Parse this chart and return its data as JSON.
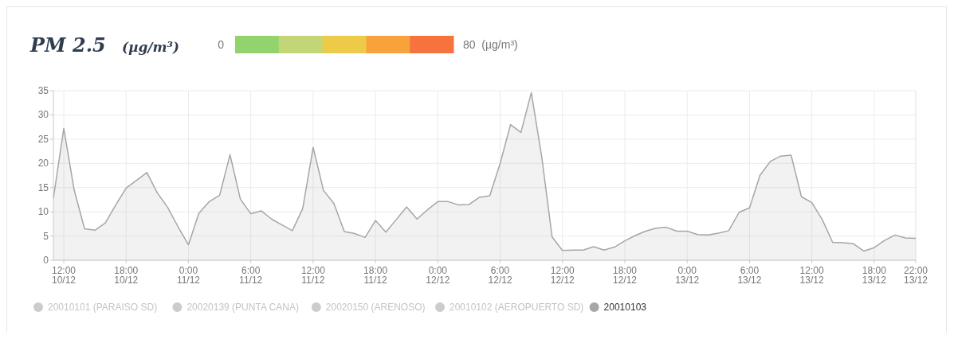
{
  "chart_data": {
    "type": "area",
    "title": "PM 2.5",
    "subtitle": "(µg/m³)",
    "annotations": [
      "0",
      "80  (µg/m³)"
    ],
    "categories": [
      null,
      "12:00\n10/12",
      null,
      null,
      null,
      null,
      null,
      "18:00\n10/12",
      null,
      null,
      null,
      null,
      null,
      "0:00\n11/12",
      null,
      null,
      null,
      null,
      null,
      "6:00\n11/12",
      null,
      null,
      null,
      null,
      null,
      "12:00\n11/12",
      null,
      null,
      null,
      null,
      null,
      "18:00\n11/12",
      null,
      null,
      null,
      null,
      null,
      "0:00\n12/12",
      null,
      null,
      null,
      null,
      null,
      "6:00\n12/12",
      null,
      null,
      null,
      null,
      null,
      "12:00\n12/12",
      null,
      null,
      null,
      null,
      null,
      "18:00\n12/12",
      null,
      null,
      null,
      null,
      null,
      "0:00\n13/12",
      null,
      null,
      null,
      null,
      null,
      "6:00\n13/12",
      null,
      null,
      null,
      null,
      null,
      "12:00\n13/12",
      null,
      null,
      null,
      null,
      null,
      "18:00\n13/12",
      null,
      null,
      null,
      "22:00\n13/12"
    ],
    "ylim": [
      0,
      35
    ],
    "yticks": [
      0,
      5,
      10,
      15,
      20,
      25,
      30,
      35
    ],
    "grid": true,
    "legend": "bottom",
    "marker": "none",
    "series": [
      {
        "name": "20010101 (PARAISO SD)",
        "color": "#cccccc",
        "values": [
          null,
          null,
          null,
          null,
          null,
          null,
          null,
          null,
          null,
          null,
          null,
          null,
          null,
          null,
          null,
          null,
          null,
          null,
          null,
          null,
          null,
          null,
          null,
          null,
          null,
          null,
          null,
          null,
          null,
          null,
          null,
          null,
          null,
          null,
          null,
          null,
          null,
          null,
          null,
          null,
          null,
          null,
          null,
          null,
          null,
          null,
          null,
          null,
          null,
          null,
          null,
          null,
          null,
          null,
          null,
          null,
          null,
          null,
          null,
          null,
          null,
          null,
          null,
          null,
          null,
          null,
          null,
          null,
          null,
          null,
          null,
          null,
          null,
          null,
          null,
          null,
          null,
          null,
          null,
          null,
          null,
          null,
          null,
          null
        ]
      },
      {
        "name": "20020139 (PUNTA CANA)",
        "color": "#cccccc",
        "values": [
          null,
          null,
          null,
          null,
          null,
          null,
          null,
          null,
          null,
          null,
          null,
          null,
          null,
          null,
          null,
          null,
          null,
          null,
          null,
          null,
          null,
          null,
          null,
          null,
          null,
          null,
          null,
          null,
          null,
          null,
          null,
          null,
          null,
          null,
          null,
          null,
          null,
          null,
          null,
          null,
          null,
          null,
          null,
          null,
          null,
          null,
          null,
          null,
          null,
          null,
          null,
          null,
          null,
          null,
          null,
          null,
          null,
          null,
          null,
          null,
          null,
          null,
          null,
          null,
          null,
          null,
          null,
          null,
          null,
          null,
          null,
          null,
          null,
          null,
          null,
          null,
          null,
          null,
          null,
          null,
          null,
          null,
          null,
          null
        ]
      },
      {
        "name": "20020150 (ARENOSO)",
        "color": "#cccccc",
        "values": [
          null,
          null,
          null,
          null,
          null,
          null,
          null,
          null,
          null,
          null,
          null,
          null,
          null,
          null,
          null,
          null,
          null,
          null,
          null,
          null,
          null,
          null,
          null,
          null,
          null,
          null,
          null,
          null,
          null,
          null,
          null,
          null,
          null,
          null,
          null,
          null,
          null,
          null,
          null,
          null,
          null,
          null,
          null,
          null,
          null,
          null,
          null,
          null,
          null,
          null,
          null,
          null,
          null,
          null,
          null,
          null,
          null,
          null,
          null,
          null,
          null,
          null,
          null,
          null,
          null,
          null,
          null,
          null,
          null,
          null,
          null,
          null,
          null,
          null,
          null,
          null,
          null,
          null,
          null,
          null,
          null,
          null,
          null,
          null
        ]
      },
      {
        "name": "20010102 (AEROPUERTO SD)",
        "color": "#cccccc",
        "values": [
          null,
          null,
          null,
          null,
          null,
          null,
          null,
          null,
          null,
          null,
          null,
          null,
          null,
          null,
          null,
          null,
          null,
          null,
          null,
          null,
          null,
          null,
          null,
          null,
          null,
          null,
          null,
          null,
          null,
          null,
          null,
          null,
          null,
          null,
          null,
          null,
          null,
          null,
          null,
          null,
          null,
          null,
          null,
          null,
          null,
          null,
          null,
          null,
          null,
          null,
          null,
          null,
          null,
          null,
          null,
          null,
          null,
          null,
          null,
          null,
          null,
          null,
          null,
          null,
          null,
          null,
          null,
          null,
          null,
          null,
          null,
          null,
          null,
          null,
          null,
          null,
          null,
          null,
          null,
          null,
          null,
          null,
          null,
          null
        ]
      },
      {
        "name": "20010103",
        "color": "#a6a6a6",
        "values": [
          12.8,
          27.2,
          14.5,
          6.5,
          6.2,
          7.7,
          11.4,
          14.9,
          16.5,
          18.1,
          13.9,
          10.9,
          6.9,
          3.2,
          9.7,
          12.1,
          13.4,
          21.8,
          12.6,
          9.6,
          10.2,
          8.5,
          7.3,
          6.1,
          10.7,
          23.3,
          14.4,
          11.7,
          5.9,
          5.5,
          4.7,
          8.2,
          5.8,
          8.4,
          11.0,
          8.5,
          10.4,
          12.1,
          12.1,
          11.4,
          11.5,
          13.0,
          13.3,
          20.0,
          28.0,
          26.4,
          34.6,
          21.4,
          4.8,
          2.0,
          2.1,
          2.1,
          2.8,
          2.1,
          2.7,
          4.0,
          5.1,
          6.0,
          6.6,
          6.8,
          6.0,
          6.0,
          5.3,
          5.2,
          5.6,
          6.1,
          9.9,
          10.8,
          17.5,
          20.4,
          21.5,
          21.7,
          13.1,
          11.9,
          8.4,
          3.7,
          3.6,
          3.4,
          1.9,
          2.6,
          4.1,
          5.2,
          4.6,
          4.5
        ]
      }
    ]
  }
}
